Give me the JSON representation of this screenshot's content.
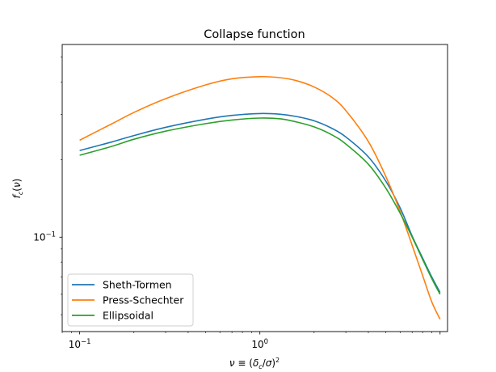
{
  "chart_data": {
    "type": "line",
    "title": "Collapse function",
    "xlabel": "ν ≡ (δ_c/σ)^2",
    "ylabel": "f_c(ν)",
    "xscale": "log",
    "yscale": "log",
    "xlim": [
      0.08,
      11.0
    ],
    "ylim": [
      0.043,
      0.56
    ],
    "x_major_ticks": [
      {
        "value": 0.1,
        "base": "10",
        "exp": "−1"
      },
      {
        "value": 1,
        "base": "10",
        "exp": "0"
      }
    ],
    "y_major_ticks": [
      {
        "value": 0.1,
        "base": "10",
        "exp": "−1"
      }
    ],
    "grid": false,
    "legend_position": "lower-left",
    "series": [
      {
        "name": "Sheth-Tormen",
        "color": "#1f77b4",
        "x": [
          0.1,
          0.15,
          0.2,
          0.3,
          0.5,
          0.7,
          1.0,
          1.3,
          1.6,
          2.0,
          2.5,
          3.0,
          4.0,
          5.0,
          6.0,
          7.0,
          8.0,
          9.0,
          10.0
        ],
        "y": [
          0.217,
          0.234,
          0.248,
          0.267,
          0.287,
          0.297,
          0.302,
          0.3,
          0.294,
          0.283,
          0.265,
          0.245,
          0.205,
          0.165,
          0.13,
          0.101,
          0.083,
          0.07,
          0.061
        ]
      },
      {
        "name": "Press-Schechter",
        "color": "#ff7f0e",
        "x": [
          0.1,
          0.15,
          0.2,
          0.3,
          0.5,
          0.7,
          1.0,
          1.3,
          1.6,
          2.0,
          2.5,
          3.0,
          4.0,
          5.0,
          6.0,
          7.0,
          8.0,
          9.0,
          10.0
        ],
        "y": [
          0.238,
          0.275,
          0.305,
          0.345,
          0.39,
          0.412,
          0.42,
          0.416,
          0.405,
          0.383,
          0.35,
          0.31,
          0.235,
          0.172,
          0.126,
          0.093,
          0.071,
          0.056,
          0.048
        ]
      },
      {
        "name": "Ellipsoidal",
        "color": "#2ca02c",
        "x": [
          0.1,
          0.15,
          0.2,
          0.3,
          0.5,
          0.7,
          1.0,
          1.3,
          1.6,
          2.0,
          2.5,
          3.0,
          4.0,
          5.0,
          6.0,
          7.0,
          8.0,
          9.0,
          10.0
        ],
        "y": [
          0.208,
          0.225,
          0.24,
          0.258,
          0.276,
          0.285,
          0.29,
          0.288,
          0.28,
          0.268,
          0.25,
          0.23,
          0.192,
          0.155,
          0.124,
          0.1,
          0.082,
          0.069,
          0.06
        ]
      }
    ]
  }
}
